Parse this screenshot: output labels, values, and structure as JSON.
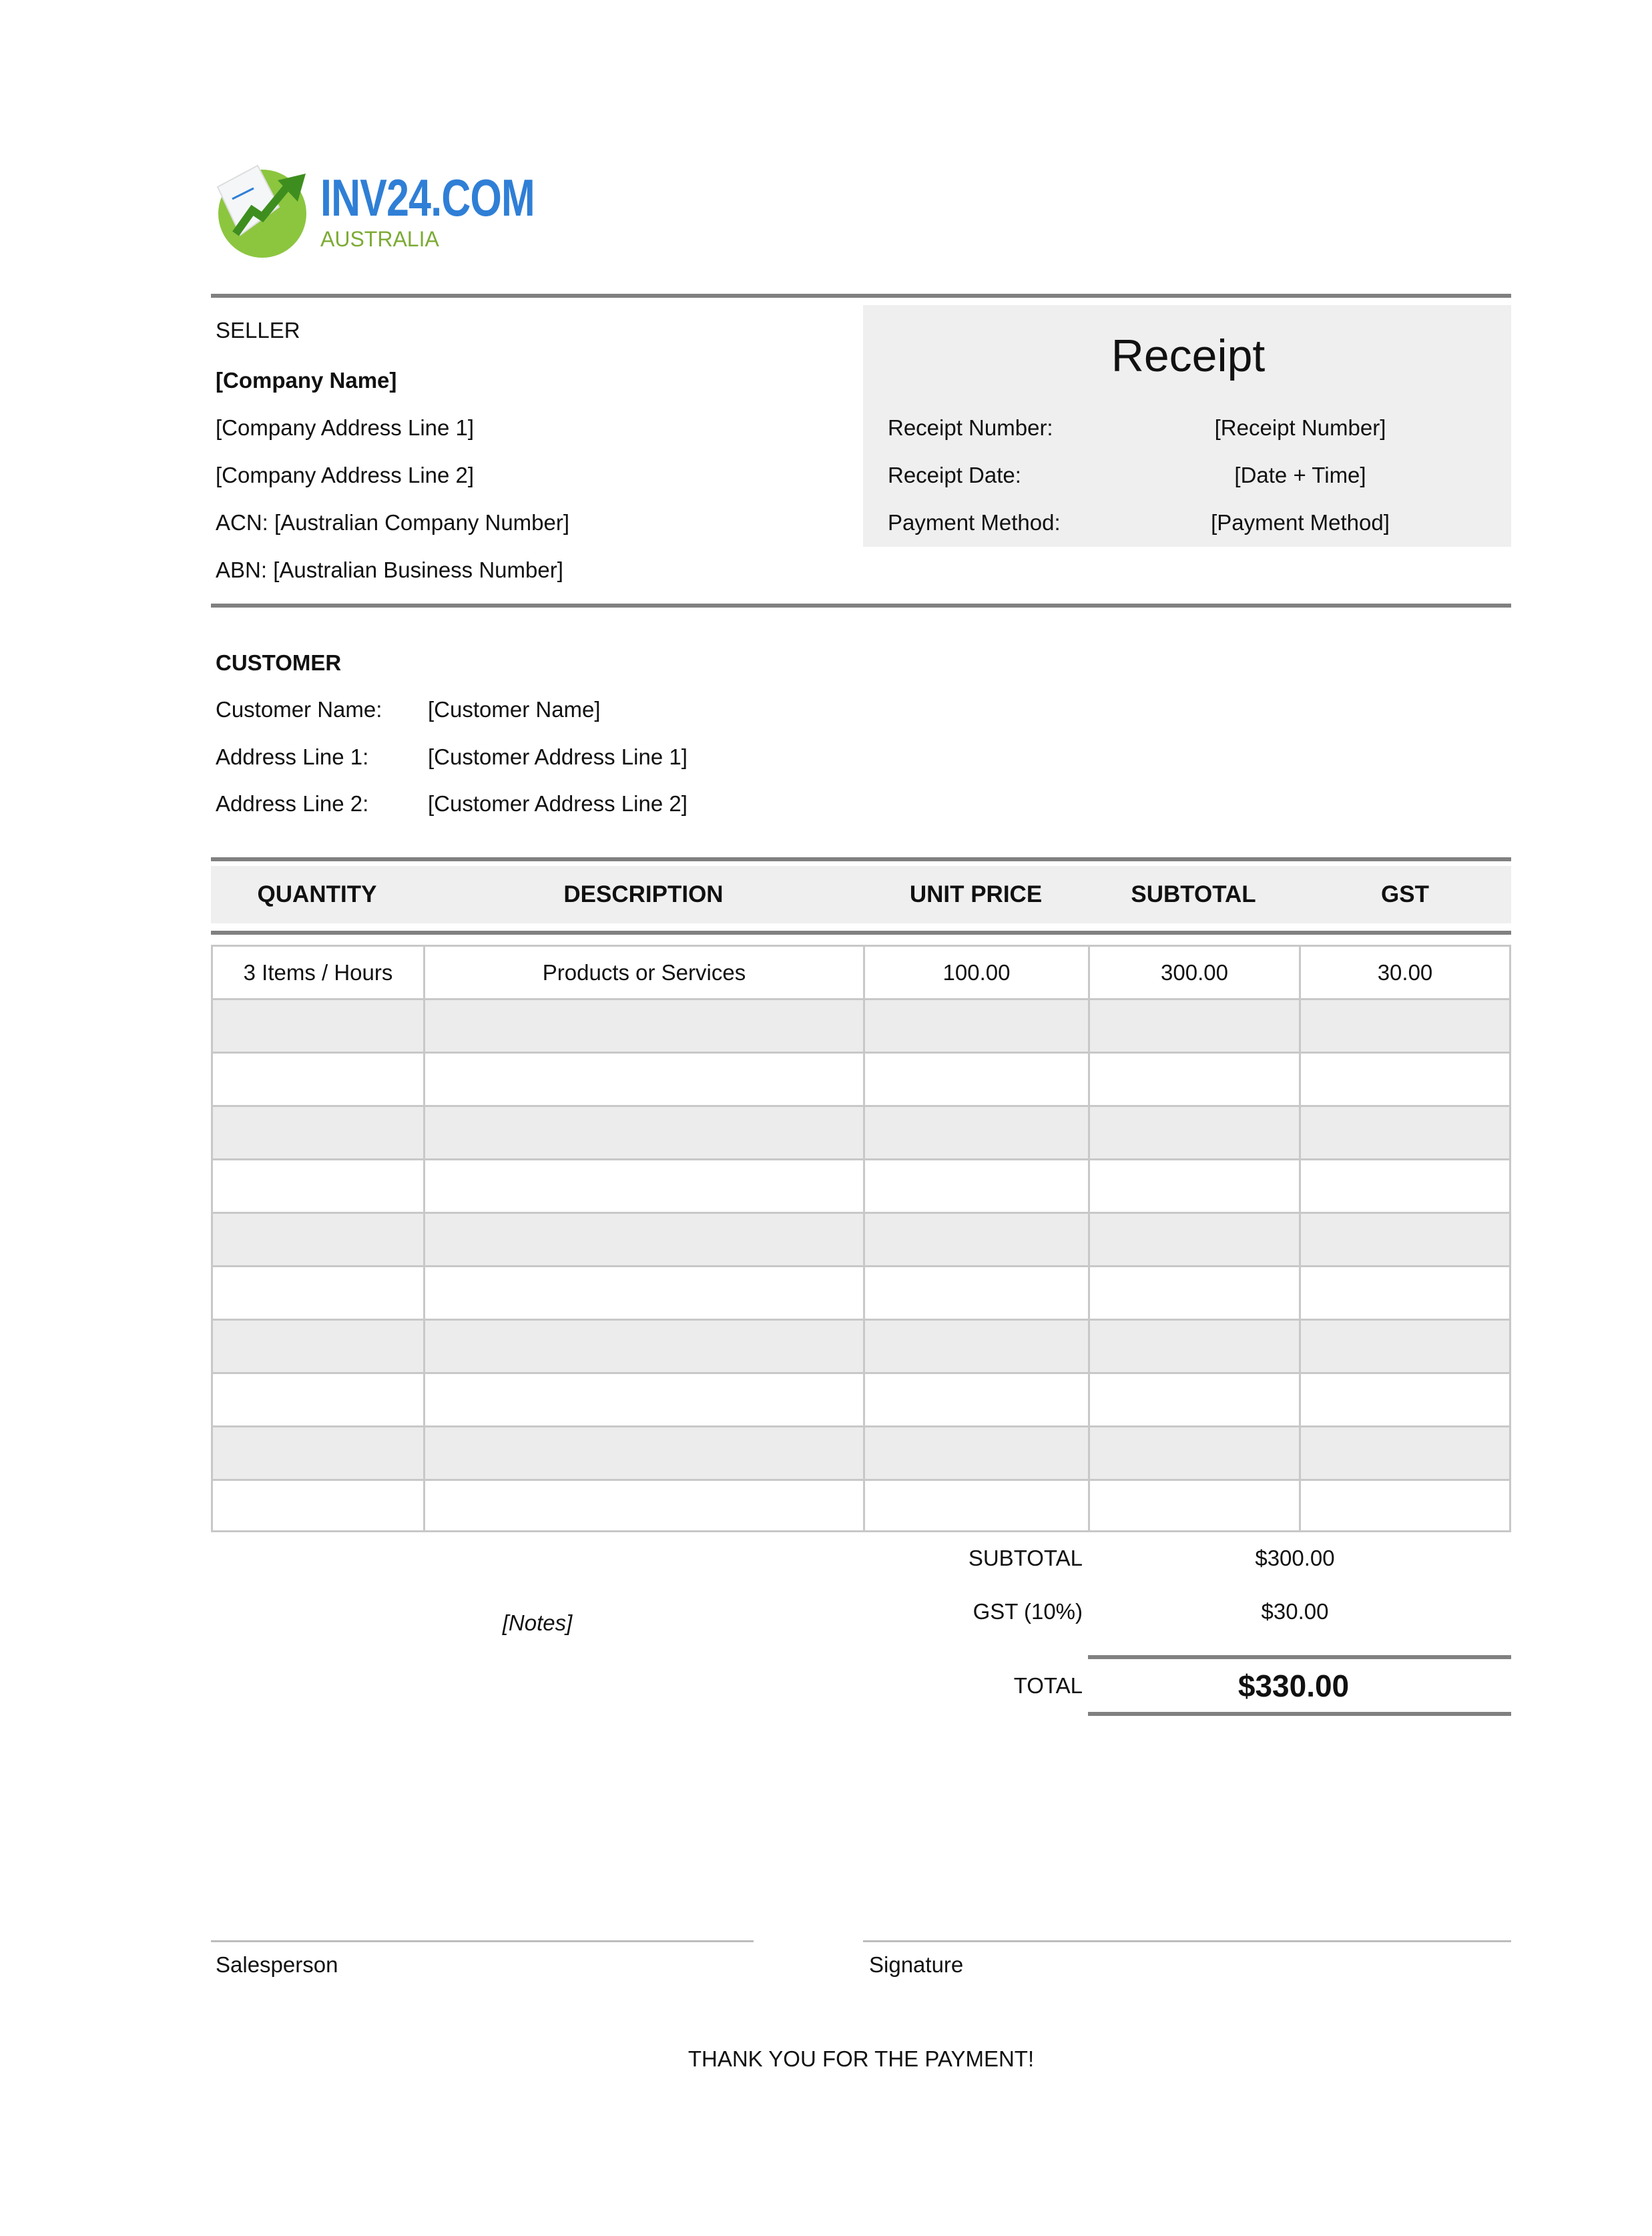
{
  "logo": {
    "brand": "INV24.COM",
    "sub": "AUSTRALIA",
    "colors": {
      "blue": "#2f7fd6",
      "green": "#7dbb32"
    }
  },
  "seller": {
    "heading": "SELLER",
    "company_name": "[Company Name]",
    "address1": "[Company Address Line 1]",
    "address2": "[Company Address Line 2]",
    "acn": "ACN: [Australian Company Number]",
    "abn": "ABN: [Australian Business Number]"
  },
  "receipt": {
    "title": "Receipt",
    "rows": [
      {
        "label": "Receipt Number:",
        "value": "[Receipt Number]"
      },
      {
        "label": "Receipt Date:",
        "value": "[Date + Time]"
      },
      {
        "label": "Payment Method:",
        "value": "[Payment Method]"
      }
    ]
  },
  "customer": {
    "heading": "CUSTOMER",
    "rows": [
      {
        "label": "Customer Name:",
        "value": "[Customer Name]"
      },
      {
        "label": "Address Line 1:",
        "value": "[Customer Address Line 1]"
      },
      {
        "label": "Address Line 2:",
        "value": "[Customer Address Line 2]"
      }
    ]
  },
  "table": {
    "headers": [
      "QUANTITY",
      "DESCRIPTION",
      "UNIT PRICE",
      "SUBTOTAL",
      "GST"
    ],
    "rows": [
      [
        "3 Items / Hours",
        "Products or Services",
        "100.00",
        "300.00",
        "30.00"
      ],
      [
        "",
        "",
        "",
        "",
        ""
      ],
      [
        "",
        "",
        "",
        "",
        ""
      ],
      [
        "",
        "",
        "",
        "",
        ""
      ],
      [
        "",
        "",
        "",
        "",
        ""
      ],
      [
        "",
        "",
        "",
        "",
        ""
      ],
      [
        "",
        "",
        "",
        "",
        ""
      ],
      [
        "",
        "",
        "",
        "",
        ""
      ],
      [
        "",
        "",
        "",
        "",
        ""
      ],
      [
        "",
        "",
        "",
        "",
        ""
      ],
      [
        "",
        "",
        "",
        "",
        ""
      ]
    ]
  },
  "totals": {
    "subtotal_label": "SUBTOTAL",
    "subtotal": "$300.00",
    "gst_label": "GST (10%)",
    "gst": "$30.00",
    "total_label": "TOTAL",
    "total": "$330.00"
  },
  "notes": "[Notes]",
  "signatures": {
    "salesperson": "Salesperson",
    "signature": "Signature"
  },
  "footer": "THANK YOU FOR THE PAYMENT!"
}
